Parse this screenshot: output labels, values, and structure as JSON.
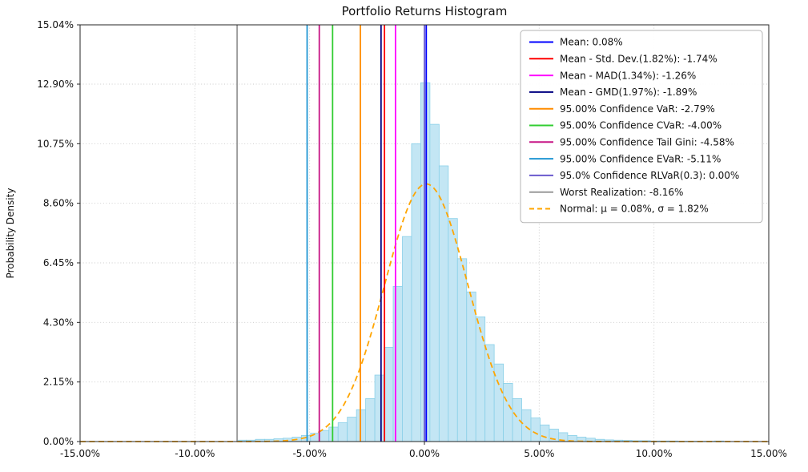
{
  "chart_data": {
    "type": "bar",
    "title": "Portfolio Returns Histogram",
    "ylabel": "Probability Density",
    "xlabel": "",
    "xlim": [
      -15,
      15
    ],
    "ylim": [
      0,
      15.04
    ],
    "grid": true,
    "legend_position": "upper right",
    "x_tick_values": [
      -15,
      -10,
      -5,
      0,
      5,
      10,
      15
    ],
    "x_tick_labels": [
      "-15.00%",
      "-10.00%",
      "-5.00%",
      "0.00%",
      "5.00%",
      "10.00%",
      "15.00%"
    ],
    "y_tick_values": [
      0,
      2.15,
      4.3,
      6.45,
      8.6,
      10.75,
      12.9,
      15.04
    ],
    "y_tick_labels": [
      "0.00%",
      "2.15%",
      "4.30%",
      "6.45%",
      "8.60%",
      "10.75%",
      "12.90%",
      "15.04%"
    ],
    "histogram": {
      "fill_color": "#c3e6f4",
      "edge_color": "#8ad0e8",
      "bin_width": 0.4,
      "bin_centers": [
        -7.96,
        -7.56,
        -7.16,
        -6.76,
        -6.36,
        -5.96,
        -5.56,
        -5.16,
        -4.76,
        -4.36,
        -3.96,
        -3.56,
        -3.16,
        -2.76,
        -2.36,
        -1.96,
        -1.56,
        -1.16,
        -0.76,
        -0.36,
        0.04,
        0.44,
        0.84,
        1.24,
        1.64,
        2.04,
        2.44,
        2.84,
        3.24,
        3.64,
        4.04,
        4.44,
        4.84,
        5.24,
        5.64,
        6.04,
        6.44,
        6.84,
        7.24,
        7.64,
        8.04,
        8.44,
        8.84,
        9.24,
        9.64,
        10.04,
        10.44,
        10.84,
        11.24,
        11.64,
        12.04,
        12.44,
        12.84
      ],
      "bin_heights": [
        0.05,
        0.05,
        0.08,
        0.08,
        0.1,
        0.12,
        0.16,
        0.22,
        0.3,
        0.4,
        0.52,
        0.68,
        0.88,
        1.15,
        1.55,
        2.4,
        3.4,
        5.6,
        7.4,
        10.75,
        12.95,
        11.45,
        9.95,
        8.05,
        6.6,
        5.4,
        4.5,
        3.5,
        2.8,
        2.1,
        1.55,
        1.15,
        0.85,
        0.6,
        0.45,
        0.32,
        0.22,
        0.16,
        0.12,
        0.08,
        0.06,
        0.05,
        0.04,
        0.03,
        0.03,
        0.02,
        0.02,
        0.02,
        0.01,
        0.01,
        0.01,
        0.01,
        0.02
      ]
    },
    "markers": [
      {
        "name": "mean",
        "label": "Mean: 0.08%",
        "color": "#0000ff",
        "x": 0.08
      },
      {
        "name": "mean-minus-std-dev",
        "label": "Mean - Std. Dev.(1.82%): -1.74%",
        "color": "#ff0000",
        "x": -1.74
      },
      {
        "name": "mean-minus-mad",
        "label": "Mean - MAD(1.34%): -1.26%",
        "color": "#ff00ff",
        "x": -1.26
      },
      {
        "name": "mean-minus-gmd",
        "label": "Mean - GMD(1.97%): -1.89%",
        "color": "#000080",
        "x": -1.89
      },
      {
        "name": "var",
        "label": "95.00% Confidence VaR: -2.79%",
        "color": "#ff8c00",
        "x": -2.79
      },
      {
        "name": "cvar",
        "label": "95.00% Confidence CVaR: -4.00%",
        "color": "#32cd32",
        "x": -4.0
      },
      {
        "name": "tail-gini",
        "label": "95.00% Confidence Tail Gini: -4.58%",
        "color": "#c71585",
        "x": -4.58
      },
      {
        "name": "evar",
        "label": "95.00% Confidence EVaR: -5.11%",
        "color": "#2096d3",
        "x": -5.11
      },
      {
        "name": "rlvar",
        "label": "95.0% Confidence RLVaR(0.3): 0.00%",
        "color": "#6a5acd",
        "x": 0.0
      },
      {
        "name": "worst-realization",
        "label": "Worst Realization: -8.16%",
        "color": "#9a9a9a",
        "x": -8.16
      }
    ],
    "normal_curve": {
      "label": "Normal: μ = 0.08%, σ = 1.82%",
      "color": "#ffa500",
      "mu": 0.08,
      "sigma": 1.82,
      "peak": 9.3,
      "dashed": true
    }
  }
}
